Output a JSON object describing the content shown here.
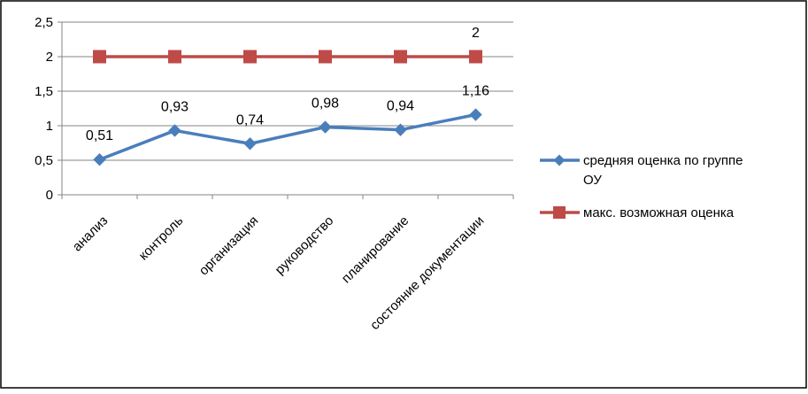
{
  "chart_data": {
    "type": "line",
    "title": "",
    "xlabel": "",
    "ylabel": "",
    "categories": [
      "анализ",
      "контроль",
      "организация",
      "руководство",
      "планирование",
      "состояние документации"
    ],
    "ylim": [
      0,
      2.5
    ],
    "yticks": [
      "0",
      "0,5",
      "1",
      "1,5",
      "2",
      "2,5"
    ],
    "grid": true,
    "legend_position": "right",
    "series": [
      {
        "name": "средняя оценка по группе ОУ",
        "values": [
          0.51,
          0.93,
          0.74,
          0.98,
          0.94,
          1.16
        ],
        "labels": [
          "0,51",
          "0,93",
          "0,74",
          "0,98",
          "0,94",
          "1,16"
        ],
        "color": "#4a7ebb",
        "marker": "diamond"
      },
      {
        "name": "макс. возможная оценка",
        "values": [
          2,
          2,
          2,
          2,
          2,
          2
        ],
        "labels": [
          "",
          "",
          "",
          "",
          "",
          "2"
        ],
        "color": "#be4b48",
        "marker": "square"
      }
    ],
    "legend": {
      "series1_line1": "средняя оценка по группе",
      "series1_line2": "ОУ",
      "series2_line1": "макс. возможная оценка"
    }
  }
}
